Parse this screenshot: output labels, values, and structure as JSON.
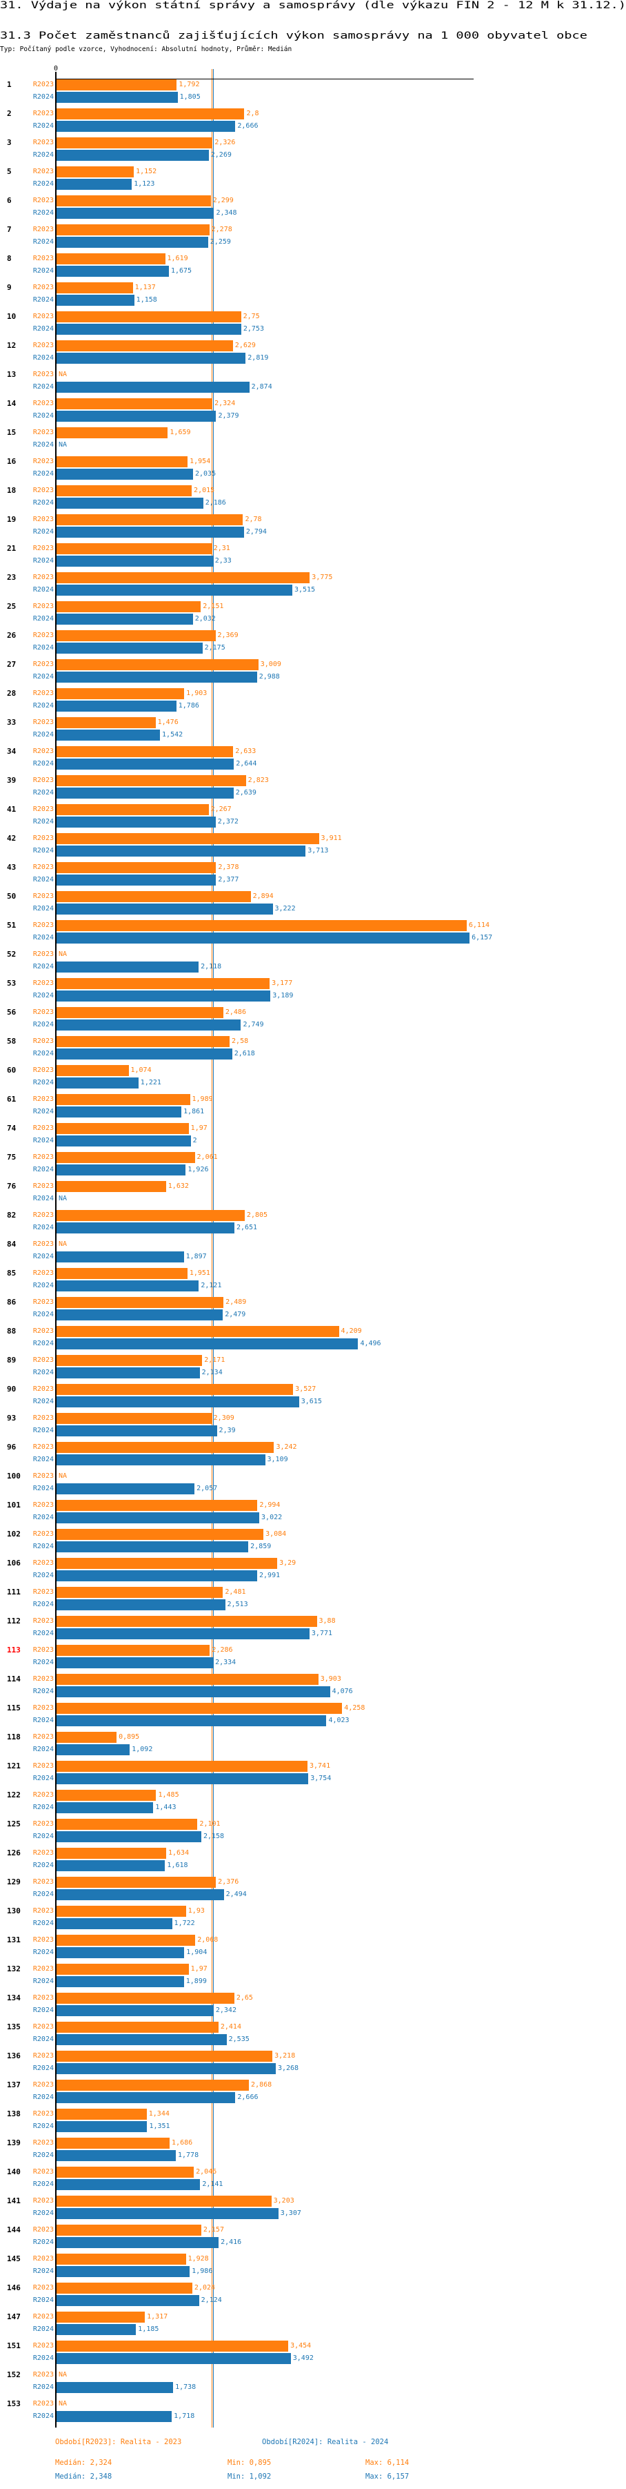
{
  "header": {
    "title": "31. Výdaje na výkon státní správy a samosprávy (dle výkazu FIN 2 - 12 M k 31.12.)",
    "subtitle": "31.3 Počet zaměstnanců zajišťujících výkon samosprávy na 1 000 obyvatel obce",
    "meta": "Typ: Počítaný podle vzorce, Vyhodnocení: Absolutní hodnoty, Průměr: Medián"
  },
  "chart_data": {
    "type": "bar",
    "orientation": "horizontal",
    "x_tick_label": "0",
    "na_label": "NA",
    "highlighted_category": "113",
    "highlight_color": "#ff0000",
    "categories": [
      "1",
      "2",
      "3",
      "5",
      "6",
      "7",
      "8",
      "9",
      "10",
      "12",
      "13",
      "14",
      "15",
      "16",
      "18",
      "19",
      "21",
      "23",
      "25",
      "26",
      "27",
      "28",
      "33",
      "34",
      "39",
      "41",
      "42",
      "43",
      "50",
      "51",
      "52",
      "53",
      "56",
      "58",
      "60",
      "61",
      "74",
      "75",
      "76",
      "82",
      "84",
      "85",
      "86",
      "88",
      "89",
      "90",
      "93",
      "96",
      "100",
      "101",
      "102",
      "106",
      "111",
      "112",
      "113",
      "114",
      "115",
      "118",
      "121",
      "122",
      "125",
      "126",
      "129",
      "130",
      "131",
      "132",
      "134",
      "135",
      "136",
      "137",
      "138",
      "139",
      "140",
      "141",
      "144",
      "145",
      "146",
      "147",
      "151",
      "152",
      "153"
    ],
    "series": [
      {
        "name": "R2023",
        "color": "#ff7f0e",
        "legend": "Období[R2023]: Realita - 2023",
        "median": 2.324,
        "min": 0.895,
        "max": 6.114,
        "values": [
          1.792,
          2.8,
          2.326,
          1.152,
          2.299,
          2.278,
          1.619,
          1.137,
          2.75,
          2.629,
          null,
          2.324,
          1.659,
          1.954,
          2.015,
          2.78,
          2.31,
          3.775,
          2.151,
          2.369,
          3.009,
          1.903,
          1.476,
          2.633,
          2.823,
          2.267,
          3.911,
          2.378,
          2.894,
          6.114,
          null,
          3.177,
          2.486,
          2.58,
          1.074,
          1.989,
          1.97,
          2.061,
          1.632,
          2.805,
          null,
          1.951,
          2.489,
          4.209,
          2.171,
          3.527,
          2.309,
          3.242,
          null,
          2.994,
          3.084,
          3.29,
          2.481,
          3.88,
          2.286,
          3.903,
          4.258,
          0.895,
          3.741,
          1.485,
          2.101,
          1.634,
          2.376,
          1.93,
          2.068,
          1.97,
          2.65,
          2.414,
          3.218,
          2.868,
          1.344,
          1.686,
          2.046,
          3.203,
          2.157,
          1.928,
          2.024,
          1.317,
          3.454,
          null,
          null
        ]
      },
      {
        "name": "R2024",
        "color": "#1f77b4",
        "legend": "Období[R2024]: Realita - 2024",
        "median": 2.348,
        "min": 1.092,
        "max": 6.157,
        "values": [
          1.805,
          2.666,
          2.269,
          1.123,
          2.348,
          2.259,
          1.675,
          1.158,
          2.753,
          2.819,
          2.874,
          2.379,
          null,
          2.035,
          2.186,
          2.794,
          2.33,
          3.515,
          2.032,
          2.175,
          2.988,
          1.786,
          1.542,
          2.644,
          2.639,
          2.372,
          3.713,
          2.377,
          3.222,
          6.157,
          2.118,
          3.189,
          2.749,
          2.618,
          1.221,
          1.861,
          2,
          1.926,
          null,
          2.651,
          1.897,
          2.121,
          2.479,
          4.496,
          2.134,
          3.615,
          2.39,
          3.109,
          2.057,
          3.022,
          2.859,
          2.991,
          2.513,
          3.771,
          2.334,
          4.076,
          4.023,
          1.092,
          3.754,
          1.443,
          2.158,
          1.618,
          2.494,
          1.722,
          1.904,
          1.899,
          2.342,
          2.535,
          3.268,
          2.666,
          1.351,
          1.778,
          2.141,
          3.307,
          2.416,
          1.986,
          2.124,
          1.185,
          3.492,
          1.738,
          1.718
        ]
      }
    ],
    "stat_labels": {
      "median": "Medián",
      "min": "Min",
      "max": "Max"
    }
  }
}
